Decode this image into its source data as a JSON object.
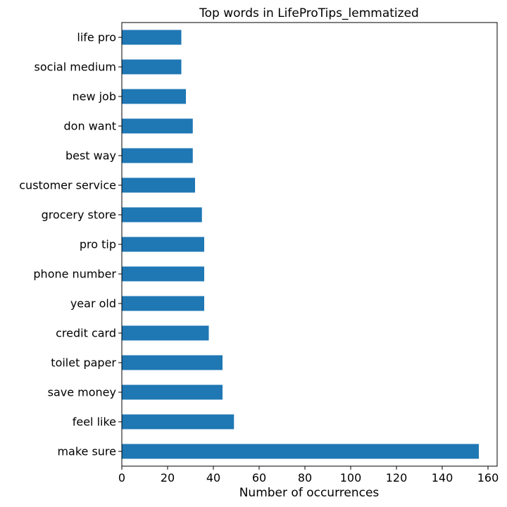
{
  "chart_data": {
    "type": "bar",
    "orientation": "horizontal",
    "title": "Top words in LifeProTips_lemmatized",
    "xlabel": "Number of occurrences",
    "ylabel": "",
    "categories": [
      "make sure",
      "feel like",
      "save money",
      "toilet paper",
      "credit card",
      "year old",
      "phone number",
      "pro tip",
      "grocery store",
      "customer service",
      "best way",
      "don want",
      "new job",
      "social medium",
      "life pro"
    ],
    "values": [
      156,
      49,
      44,
      44,
      38,
      36,
      36,
      36,
      35,
      32,
      31,
      31,
      28,
      26,
      26
    ],
    "xlim": [
      0,
      164
    ],
    "xticks": [
      0,
      20,
      40,
      60,
      80,
      100,
      120,
      140,
      160
    ],
    "bar_color": "#1f77b4",
    "grid": false,
    "legend": "none"
  }
}
